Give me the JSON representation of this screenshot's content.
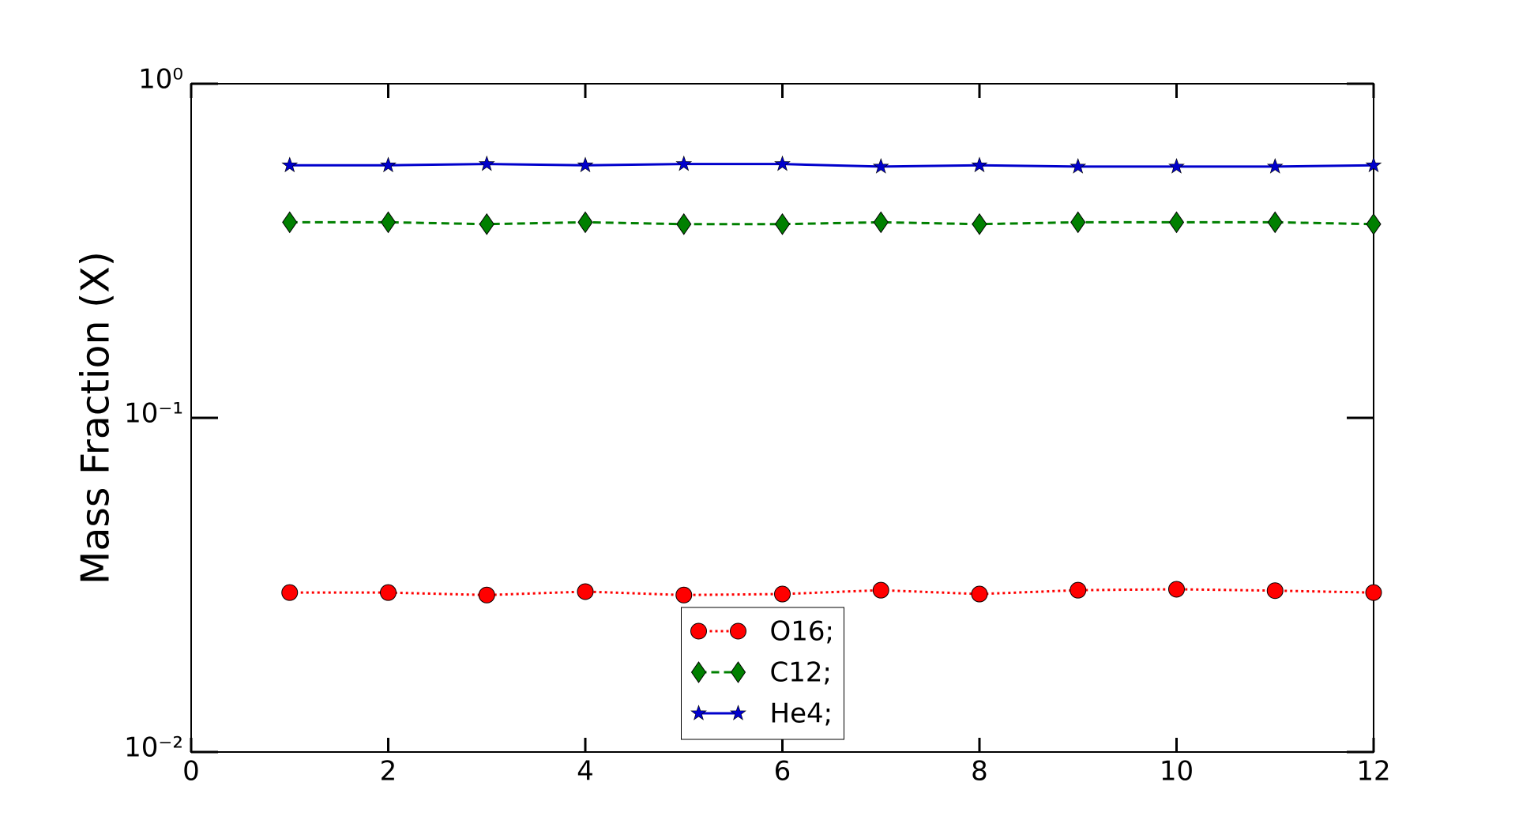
{
  "chart_data": {
    "type": "line",
    "y_label": "Mass Fraction (X)",
    "x": [
      1,
      2,
      3,
      4,
      5,
      6,
      7,
      8,
      9,
      10,
      11,
      12
    ],
    "series": [
      {
        "name": "O16;",
        "color": "#ff0000",
        "line_style": "dotted",
        "marker": "circle",
        "values": [
          0.03,
          0.03,
          0.0295,
          0.0302,
          0.0295,
          0.0297,
          0.0305,
          0.0297,
          0.0305,
          0.0307,
          0.0304,
          0.03
        ]
      },
      {
        "name": "C12;",
        "color": "#008000",
        "line_style": "dashed",
        "marker": "diamond",
        "values": [
          0.385,
          0.385,
          0.38,
          0.385,
          0.38,
          0.38,
          0.385,
          0.38,
          0.385,
          0.385,
          0.385,
          0.38
        ]
      },
      {
        "name": "He4;",
        "color": "#0000cc",
        "line_style": "solid",
        "marker": "star",
        "values": [
          0.57,
          0.57,
          0.575,
          0.57,
          0.575,
          0.575,
          0.565,
          0.57,
          0.565,
          0.565,
          0.565,
          0.57
        ]
      }
    ],
    "xlim": [
      0,
      12
    ],
    "xticks": [
      0,
      2,
      4,
      6,
      8,
      10,
      12
    ],
    "ylim": [
      0.01,
      1
    ],
    "y_scale": "log",
    "yticks": [
      {
        "value": 0.01,
        "label": "10⁻²"
      },
      {
        "value": 0.1,
        "label": "10⁻¹"
      },
      {
        "value": 1,
        "label": "10⁰"
      }
    ],
    "legend": "lower center",
    "grid": false
  }
}
